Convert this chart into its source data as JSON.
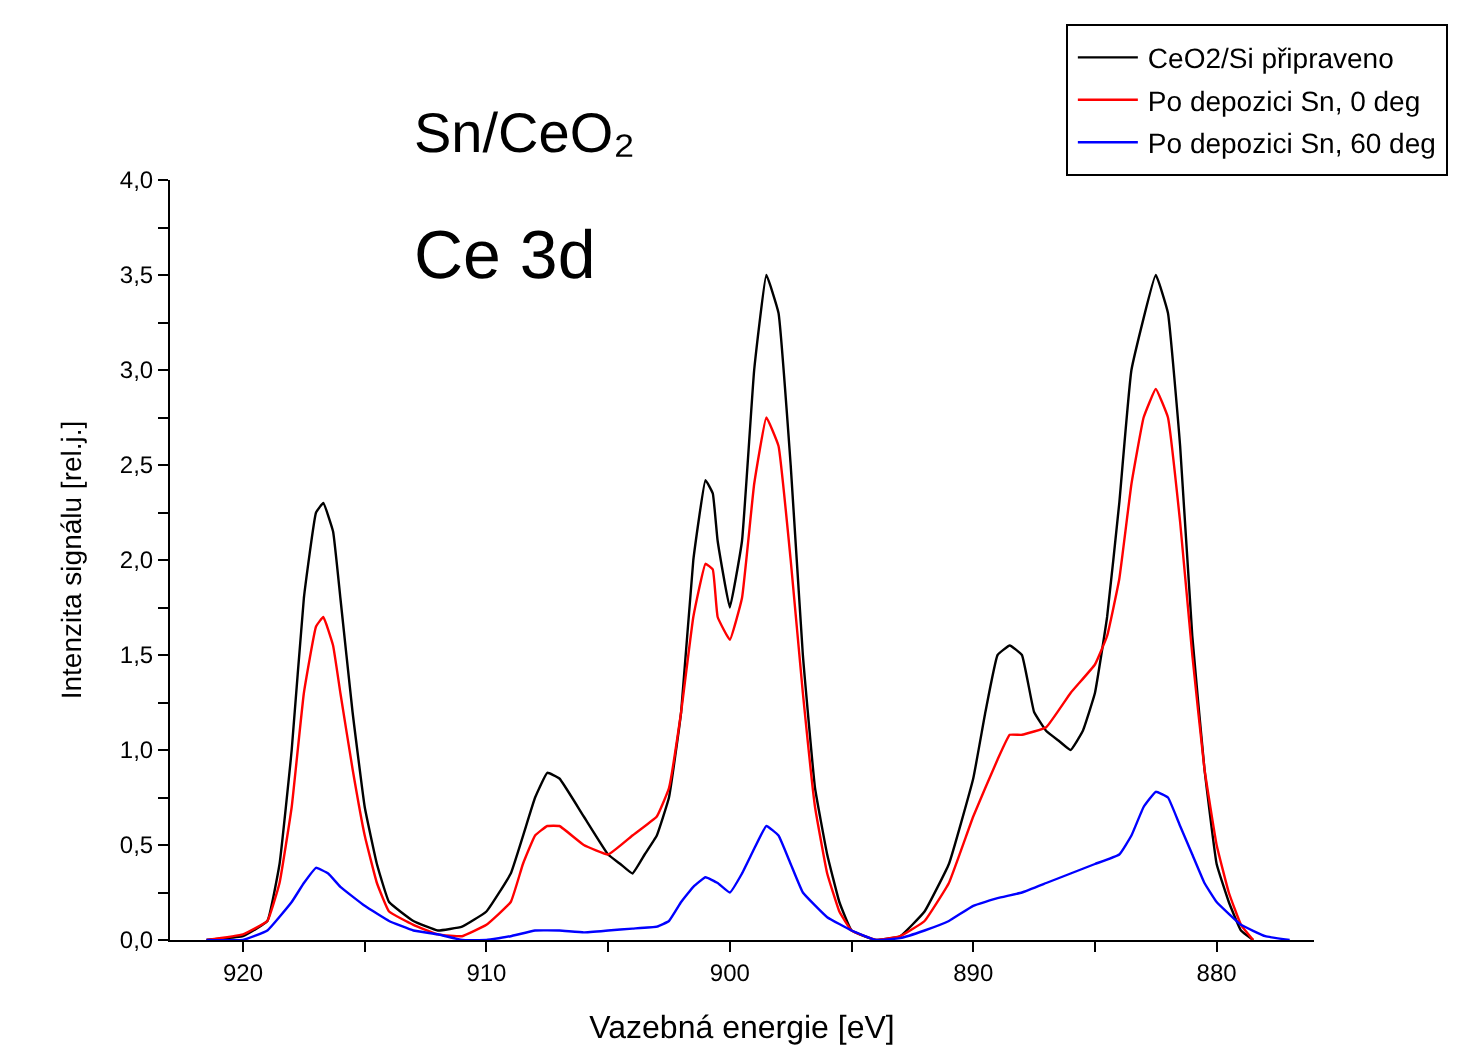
{
  "chart_data": {
    "type": "line",
    "title": "Sn/CeO₂",
    "subtitle": "Ce 3d",
    "xlabel": "Vazebná energie [eV]",
    "ylabel": "Intenzita signálu [rel.j.]",
    "xlim": [
      923,
      876
    ],
    "ylim": [
      0,
      4.0
    ],
    "xticks": [
      920,
      {
        "value": 915,
        "label": null
      },
      910,
      {
        "value": 905,
        "label": null
      },
      900,
      {
        "value": 895,
        "label": null
      },
      890,
      {
        "value": 885,
        "label": null
      },
      880
    ],
    "yticks": [
      {
        "value": 0,
        "label": "0,0"
      },
      {
        "value": 0.25,
        "label": null
      },
      {
        "value": 0.5,
        "label": "0,5"
      },
      {
        "value": 0.75,
        "label": null
      },
      {
        "value": 1.0,
        "label": "1,0"
      },
      {
        "value": 1.25,
        "label": null
      },
      {
        "value": 1.5,
        "label": "1,5"
      },
      {
        "value": 1.75,
        "label": null
      },
      {
        "value": 2.0,
        "label": "2,0"
      },
      {
        "value": 2.25,
        "label": null
      },
      {
        "value": 2.5,
        "label": "2,5"
      },
      {
        "value": 2.75,
        "label": null
      },
      {
        "value": 3.0,
        "label": "3,0"
      },
      {
        "value": 3.25,
        "label": null
      },
      {
        "value": 3.5,
        "label": "3,5"
      },
      {
        "value": 3.75,
        "label": null
      },
      {
        "value": 4.0,
        "label": "4,0"
      }
    ],
    "legend": "top right",
    "marker": "none",
    "line_style": "solid",
    "series": [
      {
        "name": "CeO2/Si připraveno",
        "color": "#000000",
        "x": [
          921.5,
          920,
          919,
          918.5,
          918,
          917.5,
          917,
          916.7,
          916.3,
          916,
          915.5,
          915,
          914.5,
          914,
          913,
          912,
          911,
          910,
          909,
          908,
          907.5,
          907,
          906,
          905,
          904.5,
          904,
          903.5,
          903,
          902.5,
          902,
          901.5,
          901,
          900.7,
          900.5,
          900,
          899.5,
          899,
          898.5,
          898,
          897.5,
          897,
          896.5,
          896,
          895.5,
          895,
          894,
          893,
          892,
          891,
          890,
          889.5,
          889,
          888.5,
          888,
          887.5,
          887,
          886.5,
          886,
          885.5,
          885,
          884.5,
          884,
          883.5,
          882.5,
          882,
          881.5,
          881,
          880.5,
          880,
          879.5,
          879,
          878.5
        ],
        "values": [
          0,
          0.02,
          0.1,
          0.4,
          1.0,
          1.8,
          2.25,
          2.3,
          2.15,
          1.8,
          1.2,
          0.7,
          0.4,
          0.2,
          0.1,
          0.05,
          0.07,
          0.15,
          0.35,
          0.75,
          0.88,
          0.85,
          0.65,
          0.45,
          0.4,
          0.35,
          0.45,
          0.55,
          0.75,
          1.2,
          2.0,
          2.42,
          2.35,
          2.1,
          1.75,
          2.1,
          3.0,
          3.5,
          3.3,
          2.5,
          1.5,
          0.8,
          0.45,
          0.2,
          0.05,
          0.0,
          0.02,
          0.15,
          0.4,
          0.85,
          1.2,
          1.5,
          1.55,
          1.5,
          1.2,
          1.1,
          1.05,
          1.0,
          1.1,
          1.3,
          1.7,
          2.3,
          3.0,
          3.5,
          3.3,
          2.6,
          1.6,
          0.9,
          0.4,
          0.2,
          0.05,
          0.0
        ]
      },
      {
        "name": "Po depozici Sn, 0 deg",
        "color": "#ff0000",
        "x": [
          921.5,
          920,
          919,
          918.5,
          918,
          917.5,
          917,
          916.7,
          916.3,
          916,
          915.5,
          915,
          914.5,
          914,
          913,
          912,
          911,
          910,
          909,
          908.5,
          908,
          907.5,
          907,
          906,
          905,
          904,
          903,
          902.5,
          902,
          901.5,
          901,
          900.7,
          900.5,
          900,
          899.5,
          899,
          898.5,
          898,
          897.5,
          897,
          896.5,
          896,
          895.5,
          895,
          894,
          893,
          892,
          891,
          890,
          889,
          888.5,
          888,
          887,
          886,
          885,
          884.5,
          884,
          883.5,
          883,
          882.5,
          882,
          881.5,
          881,
          880.5,
          880,
          879.5,
          879,
          878.5
        ],
        "values": [
          0,
          0.03,
          0.1,
          0.3,
          0.7,
          1.3,
          1.65,
          1.7,
          1.55,
          1.3,
          0.9,
          0.55,
          0.3,
          0.15,
          0.08,
          0.03,
          0.02,
          0.08,
          0.2,
          0.4,
          0.55,
          0.6,
          0.6,
          0.5,
          0.45,
          0.55,
          0.65,
          0.8,
          1.2,
          1.7,
          1.98,
          1.95,
          1.7,
          1.58,
          1.8,
          2.4,
          2.75,
          2.6,
          2.0,
          1.3,
          0.7,
          0.35,
          0.15,
          0.05,
          0.0,
          0.02,
          0.1,
          0.3,
          0.65,
          0.95,
          1.08,
          1.08,
          1.12,
          1.3,
          1.45,
          1.6,
          1.9,
          2.4,
          2.75,
          2.9,
          2.75,
          2.2,
          1.5,
          0.9,
          0.5,
          0.25,
          0.08,
          0.0
        ]
      },
      {
        "name": "Po depozici Sn, 60 deg",
        "color": "#0000ff",
        "x": [
          921.5,
          920,
          919,
          918,
          917.5,
          917,
          916.5,
          916,
          915,
          914,
          913,
          912,
          911,
          910,
          909,
          908,
          907,
          906,
          905,
          904,
          903,
          902.5,
          902,
          901.5,
          901,
          900.5,
          900,
          899.5,
          899,
          898.5,
          898,
          897.5,
          897,
          896,
          895,
          894,
          893,
          892,
          891,
          890,
          889,
          888,
          887,
          886,
          885,
          884,
          883.5,
          883,
          882.5,
          882,
          881.5,
          881,
          880.5,
          880,
          879,
          878,
          877
        ],
        "values": [
          0,
          0.0,
          0.05,
          0.2,
          0.3,
          0.38,
          0.35,
          0.28,
          0.18,
          0.1,
          0.05,
          0.03,
          0.0,
          0.0,
          0.02,
          0.05,
          0.05,
          0.04,
          0.05,
          0.06,
          0.07,
          0.1,
          0.2,
          0.28,
          0.33,
          0.3,
          0.25,
          0.35,
          0.48,
          0.6,
          0.55,
          0.4,
          0.25,
          0.12,
          0.05,
          0.0,
          0.01,
          0.05,
          0.1,
          0.18,
          0.22,
          0.25,
          0.3,
          0.35,
          0.4,
          0.45,
          0.55,
          0.7,
          0.78,
          0.75,
          0.6,
          0.45,
          0.3,
          0.2,
          0.08,
          0.02,
          0.0
        ]
      }
    ]
  }
}
